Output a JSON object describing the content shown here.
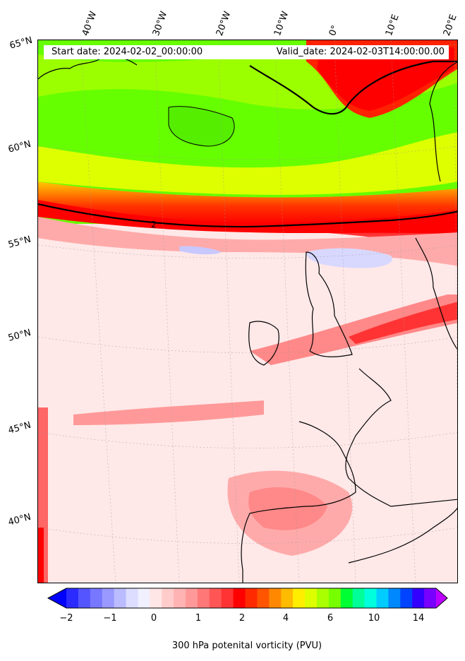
{
  "header": {
    "start_date": "Start date: 2024-02-02_00:00:00",
    "valid_date": "Valid_date: 2024-02-03T14:00:00.00"
  },
  "longitude_labels": [
    "40°W",
    "30°W",
    "20°W",
    "10°W",
    "0°",
    "10°E",
    "20°E"
  ],
  "latitude_labels": [
    "65°N",
    "60°N",
    "55°N",
    "50°N",
    "45°N",
    "40°N"
  ],
  "contour_label": "2",
  "colorbar": {
    "title": "300 hPa potenital vorticity (PVU)",
    "tick_labels": [
      "−2",
      "−1",
      "0",
      "1",
      "2",
      "4",
      "6",
      "10",
      "14"
    ],
    "colors": [
      "#0000ff",
      "#2b2bff",
      "#5555ff",
      "#7777ff",
      "#9999ff",
      "#bbbbff",
      "#ddddff",
      "#f0f0ff",
      "#ffe6e6",
      "#ffcccc",
      "#ffb3b3",
      "#ff9999",
      "#ff7777",
      "#ff5555",
      "#ff3333",
      "#ff0000",
      "#ff2a00",
      "#ff5500",
      "#ff8800",
      "#ffbb00",
      "#ffee00",
      "#ddff00",
      "#aaff00",
      "#77ff00",
      "#00ff33",
      "#00ff99",
      "#00ffdd",
      "#00ccff",
      "#0088ff",
      "#0044ff",
      "#3300ff",
      "#7700ff",
      "#bb00ff"
    ]
  }
}
